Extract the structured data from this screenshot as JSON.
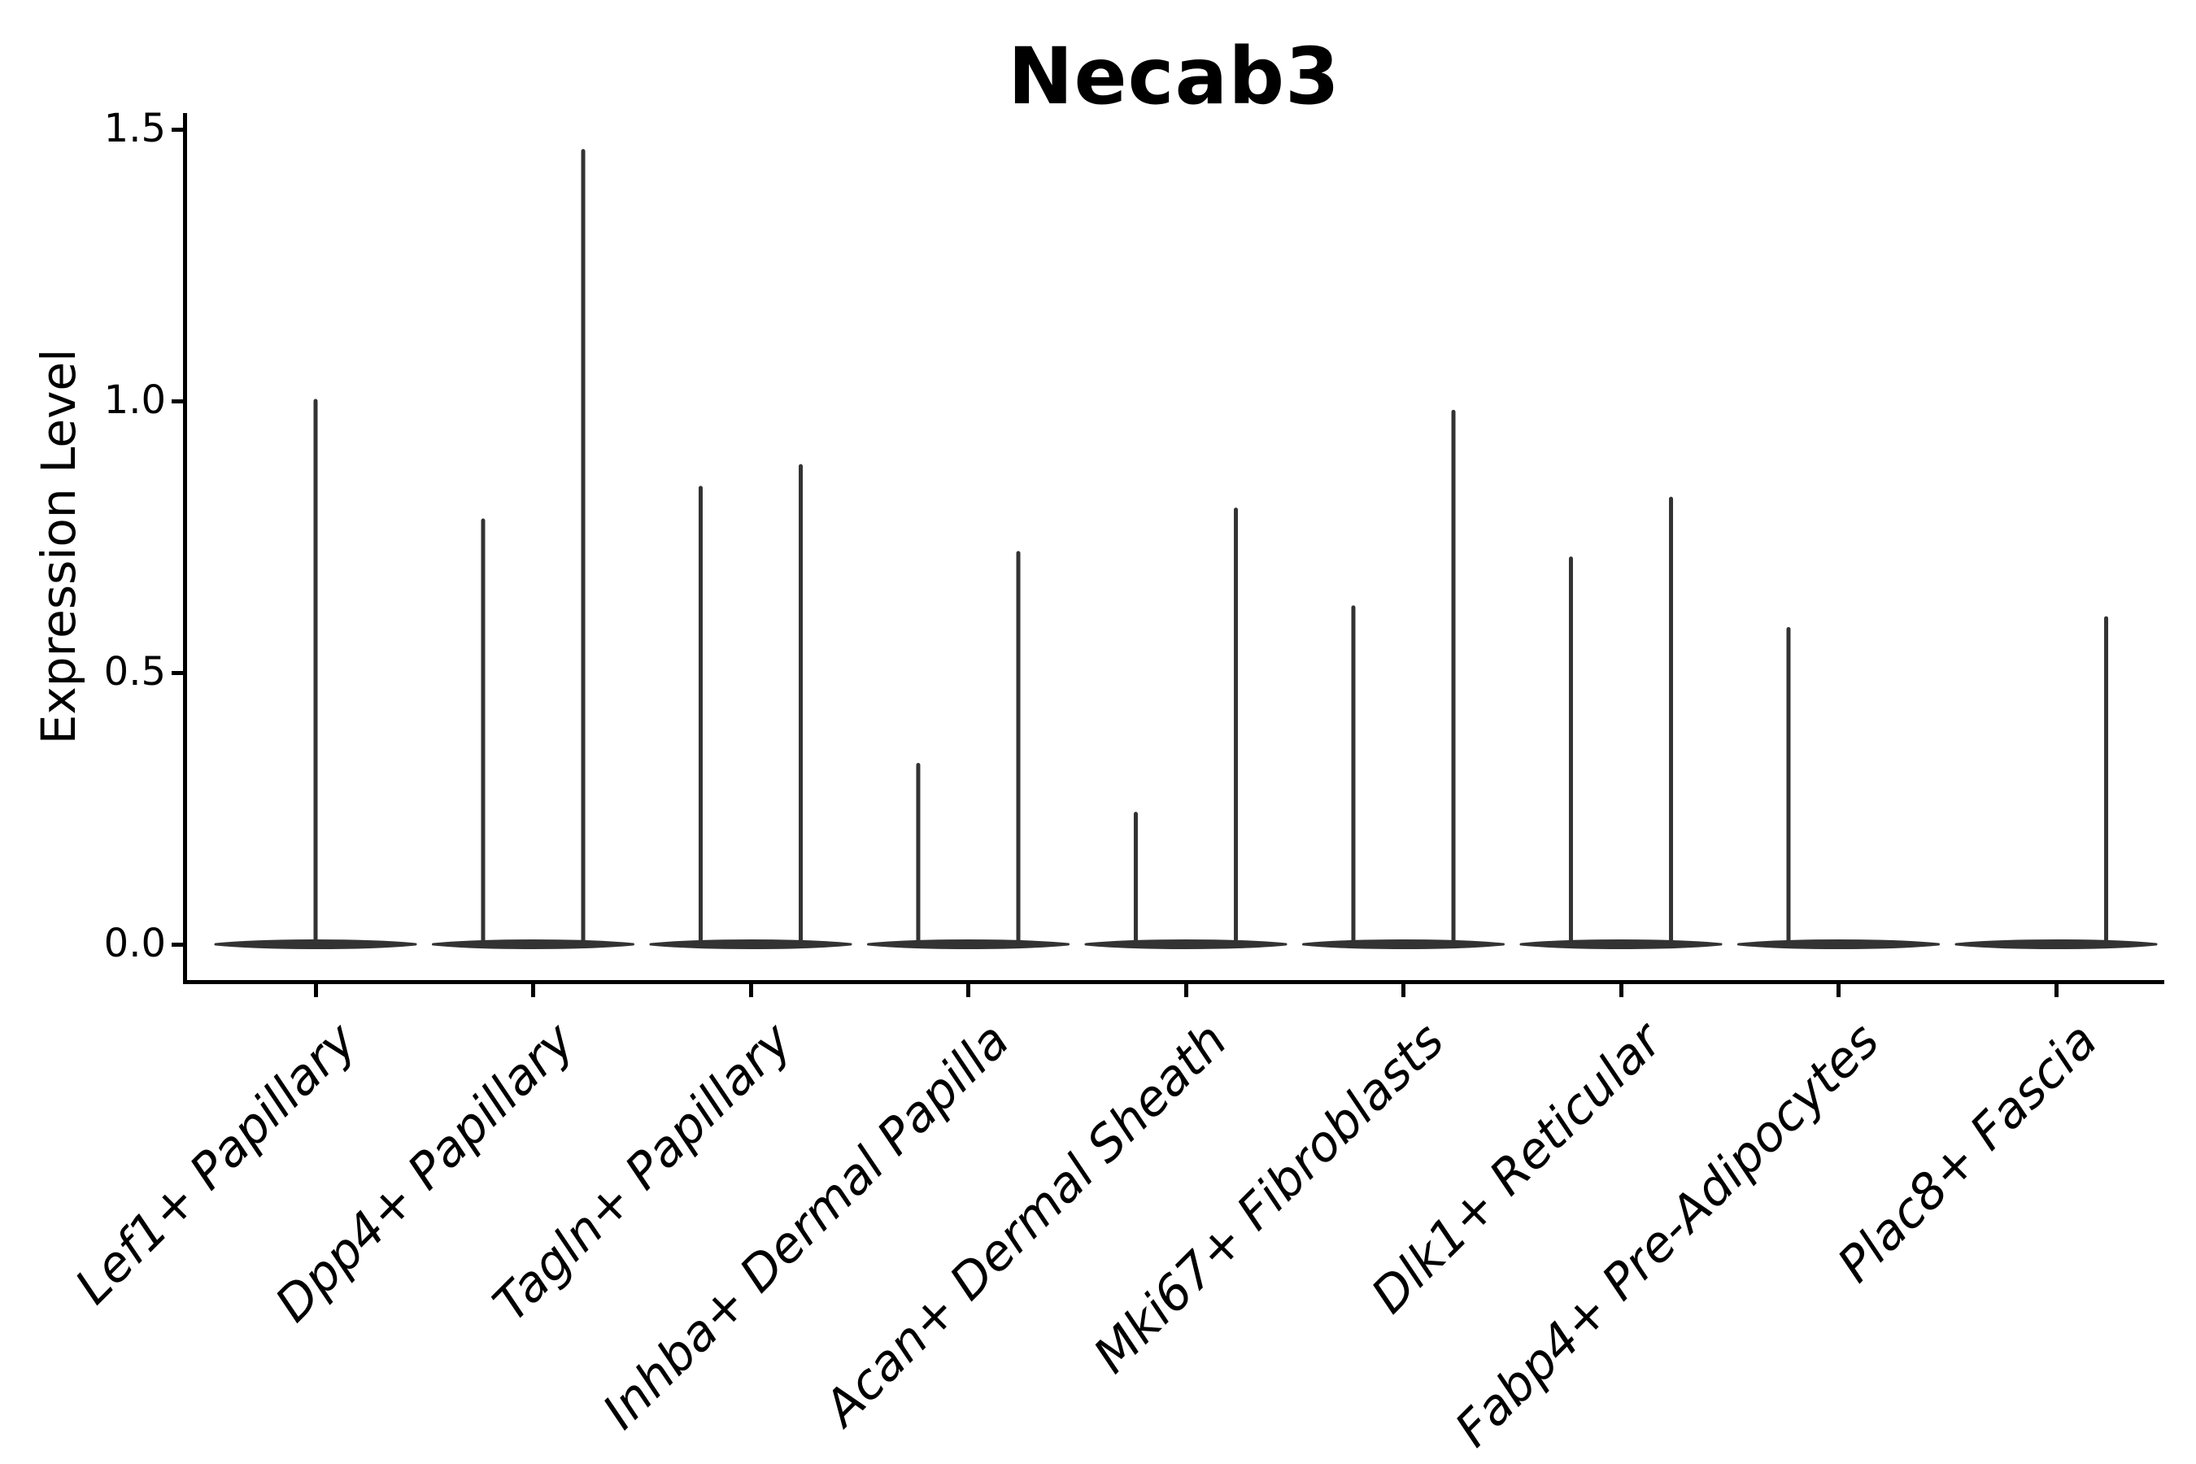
{
  "title": "Necab3",
  "chart_data": {
    "type": "violin",
    "title": "Necab3",
    "xlabel": "",
    "ylabel": "Expression Level",
    "ytick_labels": [
      "0.0",
      "0.5",
      "1.0",
      "1.5"
    ],
    "ytick_values": [
      0.0,
      0.5,
      1.0,
      1.5
    ],
    "ylim": [
      -0.07,
      1.53
    ],
    "grid": false,
    "legend_position": "none",
    "categories": [
      "Lef1+ Papillary",
      "Dpp4+ Papillary",
      "Tagln+ Papillary",
      "Inhba+ Dermal Papilla",
      "Acan+ Dermal Sheath",
      "Mki67+ Fibroblasts",
      "Dlk1+ Reticular",
      "Fabp4+ Pre-Adipocytes",
      "Plac8+ Fascia"
    ],
    "violins": [
      {
        "category": "Lef1+ Papillary",
        "base_value": 0.0,
        "spikes": [
          {
            "offset": 0.0,
            "max": 1.0
          }
        ]
      },
      {
        "category": "Dpp4+ Papillary",
        "base_value": 0.0,
        "spikes": [
          {
            "offset": -0.23,
            "max": 0.78
          },
          {
            "offset": 0.23,
            "max": 1.46
          }
        ]
      },
      {
        "category": "Tagln+ Papillary",
        "base_value": 0.0,
        "spikes": [
          {
            "offset": -0.23,
            "max": 0.84
          },
          {
            "offset": 0.23,
            "max": 0.88
          }
        ]
      },
      {
        "category": "Inhba+ Dermal Papilla",
        "base_value": 0.0,
        "spikes": [
          {
            "offset": -0.23,
            "max": 0.33
          },
          {
            "offset": 0.23,
            "max": 0.72
          }
        ]
      },
      {
        "category": "Acan+ Dermal Sheath",
        "base_value": 0.0,
        "spikes": [
          {
            "offset": -0.23,
            "max": 0.24
          },
          {
            "offset": 0.23,
            "max": 0.8
          }
        ]
      },
      {
        "category": "Mki67+ Fibroblasts",
        "base_value": 0.0,
        "spikes": [
          {
            "offset": -0.23,
            "max": 0.62
          },
          {
            "offset": 0.23,
            "max": 0.98
          }
        ]
      },
      {
        "category": "Dlk1+ Reticular",
        "base_value": 0.0,
        "spikes": [
          {
            "offset": -0.23,
            "max": 0.71
          },
          {
            "offset": 0.23,
            "max": 0.82
          }
        ]
      },
      {
        "category": "Fabp4+ Pre-Adipocytes",
        "base_value": 0.0,
        "spikes": [
          {
            "offset": -0.23,
            "max": 0.58
          }
        ]
      },
      {
        "category": "Plac8+ Fascia",
        "base_value": 0.0,
        "spikes": [
          {
            "offset": 0.23,
            "max": 0.6
          }
        ]
      }
    ],
    "colors": {
      "violin": "#333333",
      "axis": "#000000",
      "text": "#000000",
      "background": "#ffffff"
    }
  }
}
